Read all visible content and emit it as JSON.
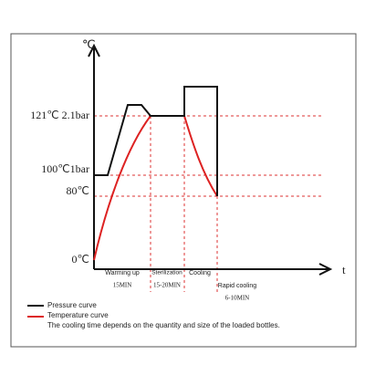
{
  "axes": {
    "y_unit": "℃",
    "x_unit": "t"
  },
  "levels": [
    "121℃ 2.1bar",
    "100℃1bar",
    "80℃",
    "0℃"
  ],
  "phases": [
    {
      "name": "Warming up",
      "duration": "15MIN"
    },
    {
      "name": "Sterilization",
      "duration": "15-20MIN"
    },
    {
      "name": "Cooling"
    },
    {
      "name": "Rapid cooling",
      "duration": "6-10MIN"
    }
  ],
  "legend": [
    "Pressure curve",
    "Temperature curve"
  ],
  "note": "The cooling time depends on the quantity and size of the loaded bottles."
}
